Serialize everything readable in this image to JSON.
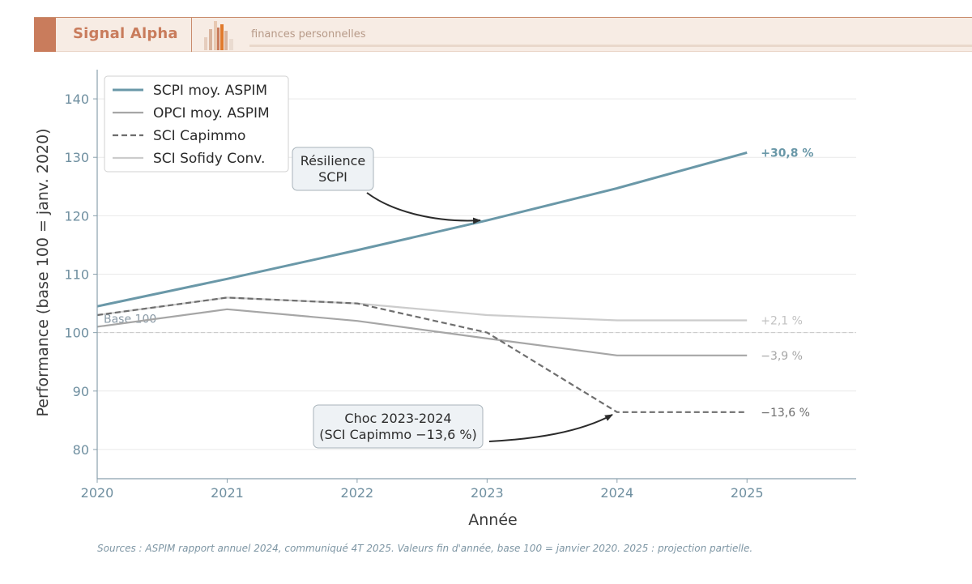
{
  "header": {
    "brand": "Signal Alpha",
    "tagline": "finances personnelles",
    "logo_icon": "bar-chart-logo-icon"
  },
  "colors": {
    "accent": "#c97c5c",
    "scpi": "#6a98a8",
    "opci": "#a6a6a6",
    "capimmo": "#6e6e6e",
    "sofidy": "#cccccc",
    "axis": "#8aa1ad"
  },
  "chart_data": {
    "type": "line",
    "xlabel": "Année",
    "ylabel": "Performance (base 100 = janv. 2020)",
    "x": [
      2020,
      2021,
      2022,
      2023,
      2024,
      2025
    ],
    "xlim": [
      2020,
      2025.84
    ],
    "ylim": [
      75,
      145
    ],
    "yticks": [
      80,
      90,
      100,
      110,
      120,
      130,
      140
    ],
    "grid": true,
    "legend": "top-left",
    "series": [
      {
        "name": "SCPI moy. ASPIM",
        "values": [
          104.5,
          109.2,
          114.1,
          119.2,
          124.7,
          130.8
        ],
        "style": "solid",
        "color": "#6a98a8",
        "end_label": "+30,8 %"
      },
      {
        "name": "OPCI moy. ASPIM",
        "values": [
          101.0,
          104.0,
          102.0,
          99.0,
          96.1,
          96.1
        ],
        "style": "solid",
        "color": "#a6a6a6",
        "end_label": "−3,9 %"
      },
      {
        "name": "SCI Capimmo",
        "values": [
          103.0,
          106.0,
          105.0,
          100.0,
          86.4,
          86.4
        ],
        "style": "dashed",
        "color": "#6e6e6e",
        "end_label": "−13,6 %"
      },
      {
        "name": "SCI Sofidy Conv.",
        "values": [
          103.0,
          106.0,
          105.0,
          103.0,
          102.1,
          102.1
        ],
        "style": "solid",
        "color": "#cccccc",
        "end_label": "+2,1 %"
      }
    ],
    "reference_line": {
      "value": 100,
      "label": "Base 100"
    },
    "annotations": [
      {
        "lines": [
          "Résilience",
          "SCPI"
        ],
        "target": {
          "x": 2023,
          "y": 119.2
        }
      },
      {
        "lines": [
          "Choc 2023-2024",
          "(SCI Capimmo −13,6 %)"
        ],
        "target": {
          "x": 2024,
          "y": 86.4
        }
      }
    ]
  },
  "footer": {
    "sources": "Sources : ASPIM rapport annuel 2024, communiqué 4T 2025. Valeurs fin d'année, base 100 = janvier 2020. 2025 : projection partielle."
  }
}
